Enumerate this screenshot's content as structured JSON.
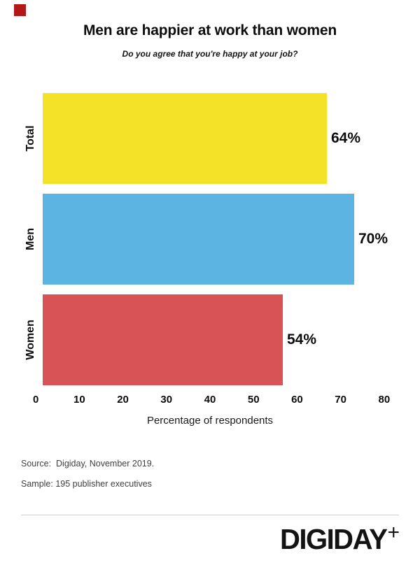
{
  "brand": {
    "mark_color": "#b11818",
    "logo_text": "DIGIDAY",
    "logo_plus": "+"
  },
  "header": {
    "title": "Men are happier at work than women",
    "subtitle": "Do you agree that you're happy at your job?"
  },
  "chart_data": {
    "type": "bar",
    "orientation": "horizontal",
    "title": "Men are happier at work than women",
    "subtitle": "Do you agree that you're happy at your job?",
    "categories": [
      "Total",
      "Men",
      "Women"
    ],
    "values": [
      64,
      70,
      54
    ],
    "value_labels": [
      "64%",
      "70%",
      "54%"
    ],
    "bar_colors": [
      "#f3e227",
      "#5cb4e3",
      "#d85356"
    ],
    "xlabel": "Percentage of respondents",
    "x_ticks": [
      "0",
      "10",
      "20",
      "30",
      "40",
      "50",
      "60",
      "70",
      "80"
    ],
    "xlim": [
      0,
      80
    ],
    "grid": false,
    "legend": false
  },
  "footer": {
    "source": "Source:  Digiday, November 2019.",
    "sample": "Sample: 195 publisher executives"
  }
}
